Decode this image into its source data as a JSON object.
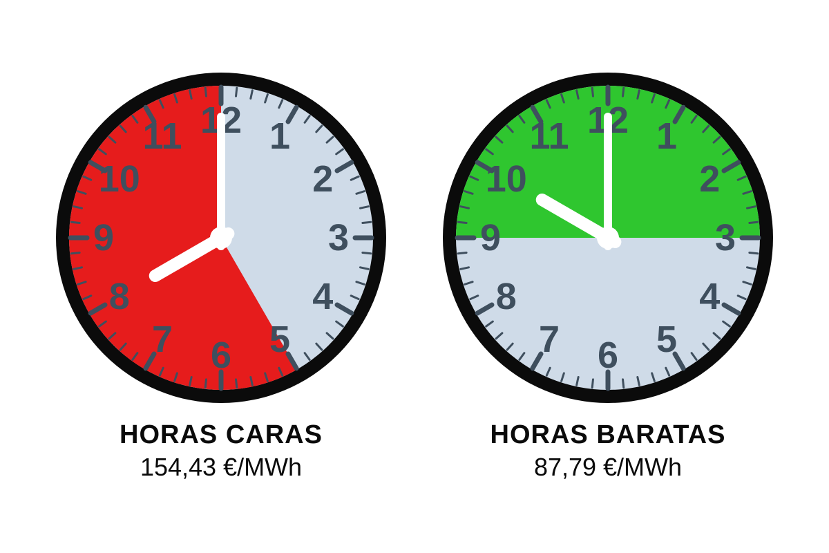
{
  "background_color": "#ffffff",
  "clock": {
    "diameter": 480,
    "bezel_color": "#0b0b0b",
    "bezel_width": 20,
    "face_color": "#cfdbe8",
    "tick_color": "#3f4f5e",
    "numeral_color": "#3f4f5e",
    "numeral_fontsize": 54,
    "hand_color": "#ffffff",
    "hand_stroke": "#7a8a99",
    "hour_hand_len": 110,
    "hour_hand_w": 18,
    "minute_hand_len": 175,
    "minute_hand_w": 12,
    "hub_r": 16,
    "major_tick_len": 24,
    "major_tick_w": 7,
    "minor_tick_len": 12,
    "minor_tick_w": 3,
    "numeral_radius": 170
  },
  "text_style": {
    "title_color": "#0a0a0a",
    "title_fontsize": 38,
    "title_weight": 800,
    "price_color": "#0a0a0a",
    "price_fontsize": 36
  },
  "clocks": [
    {
      "id": "expensive",
      "title": "HORAS CARAS",
      "price": "154,43 €/MWh",
      "sector_color": "#e61c1c",
      "sector_start_hour": 5,
      "sector_end_hour": 12,
      "hour_hand_hour": 8.0,
      "minute_hand_minute": 0
    },
    {
      "id": "cheap",
      "title": "HORAS BARATAS",
      "price": "87,79 €/MWh",
      "sector_color": "#2fc62f",
      "sector_start_hour": 9,
      "sector_end_hour": 15,
      "hour_hand_hour": 10.0,
      "minute_hand_minute": 0
    }
  ]
}
